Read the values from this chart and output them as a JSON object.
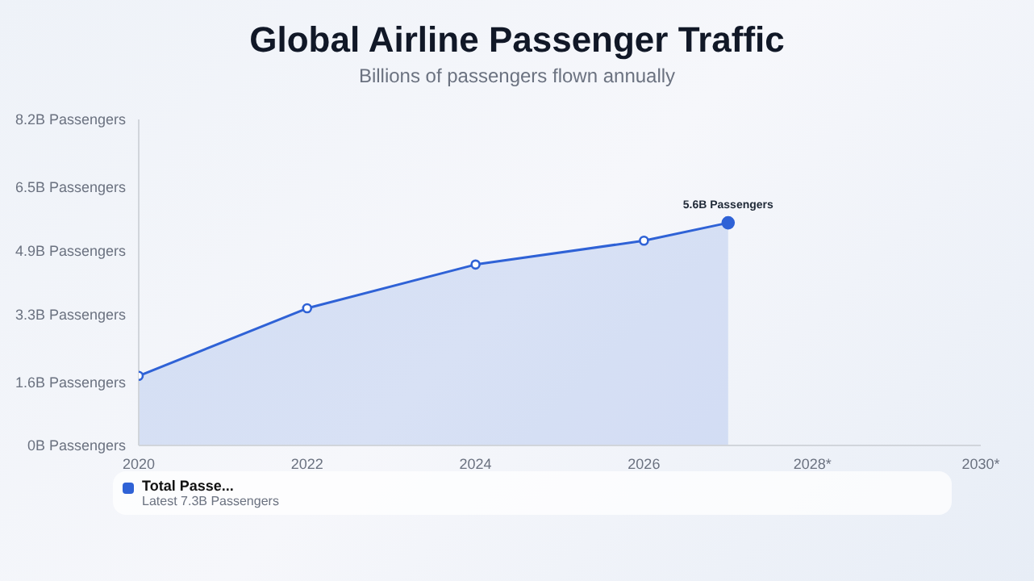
{
  "chart_data": {
    "type": "area",
    "title": "Global Airline Passenger Traffic",
    "subtitle": "Billions of passengers flown annually",
    "x": [
      2020,
      2022,
      2024,
      2026,
      2027
    ],
    "series": [
      {
        "name": "Total Passe...",
        "color": "#2f62d6",
        "values": [
          1.75,
          3.45,
          4.55,
          5.15,
          5.6
        ]
      }
    ],
    "xlim": [
      2020,
      2030
    ],
    "xticks": [
      2020,
      2022,
      2024,
      2026,
      {
        "value": 2028,
        "label": "2028*"
      },
      {
        "value": 2030,
        "label": "2030*"
      }
    ],
    "ylim": [
      0,
      8.2
    ],
    "yticks": [
      {
        "value": 0,
        "label": "0B Passengers"
      },
      {
        "value": 1.6,
        "label": "1.6B Passengers"
      },
      {
        "value": 3.3,
        "label": "3.3B Passengers"
      },
      {
        "value": 4.9,
        "label": "4.9B Passengers"
      },
      {
        "value": 6.5,
        "label": "6.5B Passengers"
      },
      {
        "value": 8.2,
        "label": "8.2B Passengers"
      }
    ],
    "annotations": [
      {
        "text": "5.6B Passengers",
        "x": 2027,
        "y": 5.6
      },
      "Latest 7.3B Passengers"
    ],
    "marker": "circle",
    "grid": false,
    "legend": "bottom"
  }
}
